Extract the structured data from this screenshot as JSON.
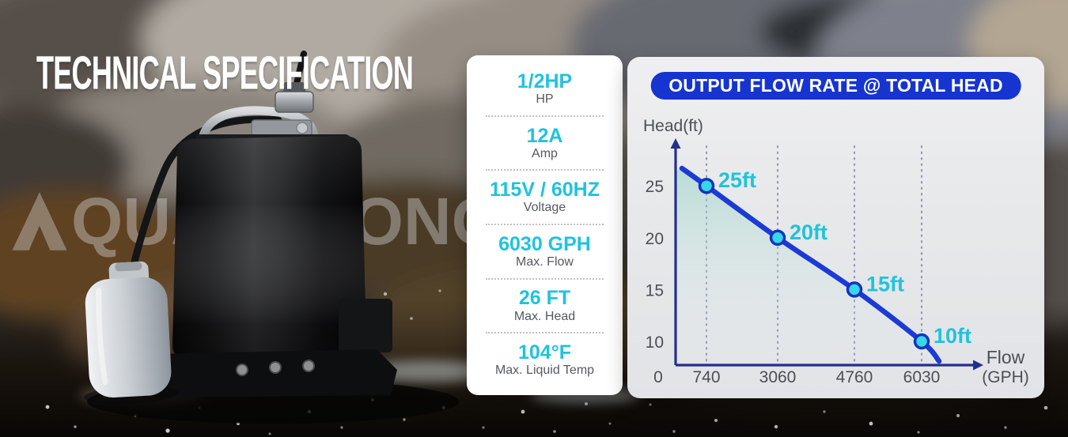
{
  "title": "TECHNICAL SPECIFICATION",
  "watermark": {
    "logo_letter": "A",
    "text": "QUASTRONG",
    "registered_mark": "®"
  },
  "spec": {
    "rows": [
      {
        "value": "1/2HP",
        "label": "HP"
      },
      {
        "value": "12A",
        "label": "Amp"
      },
      {
        "value": "115V / 60HZ",
        "label": "Voltage"
      },
      {
        "value": "6030 GPH",
        "label": "Max. Flow"
      },
      {
        "value": "26 FT",
        "label": "Max. Head"
      },
      {
        "value": "104°F",
        "label": "Max. Liquid Temp"
      }
    ]
  },
  "chart_data": {
    "type": "area",
    "title": "OUTPUT FLOW RATE @ TOTAL HEAD",
    "y_label": "Head(ft)",
    "x_label": "Flow",
    "x_unit": "(GPH)",
    "x": [
      740,
      3060,
      4760,
      6030
    ],
    "y": [
      25,
      20,
      15,
      10
    ],
    "point_labels": [
      "25ft",
      "20ft",
      "15ft",
      "10ft"
    ],
    "x_ticks": [
      "0",
      "740",
      "3060",
      "4760",
      "6030"
    ],
    "y_ticks": [
      25,
      20,
      15,
      10
    ],
    "ylim": [
      7.5,
      27
    ],
    "max_head_ft": 26,
    "max_flow_gph": 6030,
    "grid": "vertical-dotted",
    "legend": "none",
    "colors": {
      "line": "#1b3bd4",
      "axis": "#242f8c",
      "grid": "#8e93bd",
      "point_fill": "#35d7e9",
      "point_stroke": "#1533c0",
      "label": "#1fc3dc",
      "tick": "#4b5056",
      "fill_top": "rgba(144,208,196,0.55)",
      "fill_bottom": "rgba(240,246,245,0.02)"
    }
  },
  "ui": {
    "colors": {
      "accent-cyan": "#1fc3dc",
      "badge-blue": "#1634d0",
      "panel-white": "#ffffff",
      "spec-label-gray": "#55595f",
      "tick-gray": "#4b5056"
    }
  }
}
